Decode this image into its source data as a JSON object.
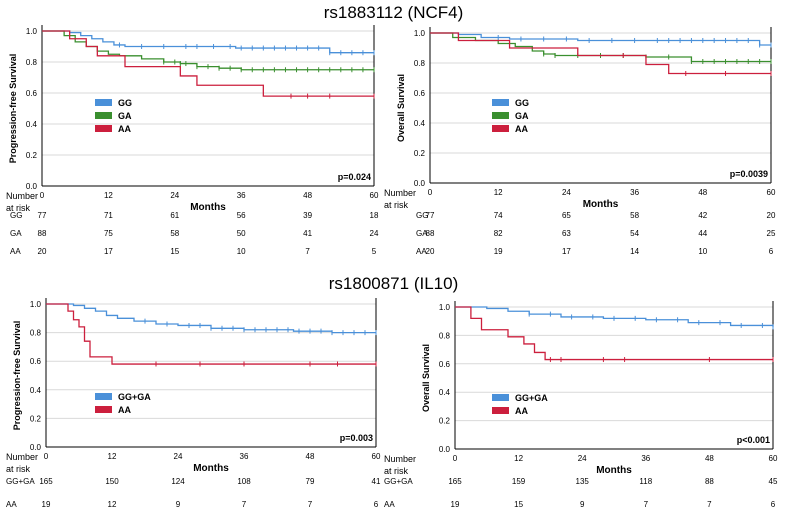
{
  "titles": {
    "top": "rs1883112 (NCF4)",
    "bottom": "rs1800871 (IL10)"
  },
  "colors": {
    "GG": "#4a90d9",
    "GA": "#3a8f2f",
    "AA": "#cc1f3d",
    "GG+GA": "#4a90d9",
    "grid": "#d9d9d9"
  },
  "chart_data": [
    {
      "type": "line",
      "title": "rs1883112 (NCF4)",
      "ylabel": "Progression-free Survival",
      "xlabel": "Months",
      "xlim": [
        0,
        60
      ],
      "ylim": [
        0,
        1.0
      ],
      "xticks": [
        "0",
        "12",
        "24",
        "36",
        "48",
        "60"
      ],
      "yticks": [
        "0.0",
        "0.2",
        "0.4",
        "0.6",
        "0.8",
        "1.0"
      ],
      "pvalue": "p=0.024",
      "legend": [
        "GG",
        "GA",
        "AA"
      ],
      "series": [
        {
          "name": "GG",
          "x": [
            0,
            5,
            7,
            9,
            11,
            13,
            15,
            20,
            35,
            38,
            52,
            60
          ],
          "y": [
            1.0,
            0.99,
            0.97,
            0.95,
            0.93,
            0.91,
            0.9,
            0.9,
            0.89,
            0.89,
            0.86,
            0.86
          ],
          "censor": [
            14,
            18,
            22,
            26,
            28,
            31,
            34,
            36,
            38,
            40,
            42,
            44,
            46,
            48,
            50,
            52,
            54,
            56,
            58,
            60
          ]
        },
        {
          "name": "GA",
          "x": [
            0,
            4,
            6,
            8,
            10,
            12,
            14,
            18,
            22,
            25,
            28,
            32,
            36,
            60
          ],
          "y": [
            1.0,
            0.97,
            0.93,
            0.9,
            0.87,
            0.85,
            0.84,
            0.82,
            0.8,
            0.79,
            0.77,
            0.76,
            0.75,
            0.75
          ],
          "censor": [
            22,
            24,
            25,
            26,
            28,
            30,
            32,
            34,
            36,
            38,
            40,
            42,
            44,
            46,
            48,
            50,
            52,
            54,
            56,
            58,
            60
          ]
        },
        {
          "name": "AA",
          "x": [
            0,
            5,
            8,
            10,
            15,
            25,
            28,
            40,
            60
          ],
          "y": [
            1.0,
            0.95,
            0.9,
            0.84,
            0.77,
            0.71,
            0.65,
            0.58,
            0.58
          ],
          "censor": [
            45,
            48,
            52,
            60
          ]
        }
      ],
      "risk_label": [
        "Number",
        "at risk"
      ],
      "risk": [
        {
          "group": "GG",
          "values": [
            "77",
            "71",
            "61",
            "56",
            "39",
            "18"
          ]
        },
        {
          "group": "GA",
          "values": [
            "88",
            "75",
            "58",
            "50",
            "41",
            "24"
          ]
        },
        {
          "group": "AA",
          "values": [
            "20",
            "17",
            "15",
            "10",
            "7",
            "5"
          ]
        }
      ]
    },
    {
      "type": "line",
      "title": "rs1883112 (NCF4)",
      "ylabel": "Overall Survival",
      "xlabel": "Months",
      "xlim": [
        0,
        60
      ],
      "ylim": [
        0,
        1.0
      ],
      "xticks": [
        "0",
        "12",
        "24",
        "36",
        "48",
        "60"
      ],
      "yticks": [
        "0.0",
        "0.2",
        "0.4",
        "0.6",
        "0.8",
        "1.0"
      ],
      "pvalue": "p=0.0039",
      "legend": [
        "GG",
        "GA",
        "AA"
      ],
      "series": [
        {
          "name": "GG",
          "x": [
            0,
            5,
            9,
            14,
            26,
            46,
            58,
            60
          ],
          "y": [
            1.0,
            0.99,
            0.97,
            0.96,
            0.95,
            0.95,
            0.92,
            0.92
          ],
          "censor": [
            12,
            16,
            20,
            24,
            28,
            32,
            36,
            40,
            42,
            44,
            46,
            48,
            50,
            52,
            54,
            56,
            58,
            60
          ]
        },
        {
          "name": "GA",
          "x": [
            0,
            4,
            8,
            12,
            15,
            18,
            20,
            22,
            38,
            46,
            60
          ],
          "y": [
            1.0,
            0.97,
            0.95,
            0.93,
            0.91,
            0.88,
            0.86,
            0.85,
            0.84,
            0.81,
            0.81
          ],
          "censor": [
            20,
            22,
            26,
            30,
            34,
            38,
            42,
            46,
            48,
            50,
            52,
            54,
            56,
            58,
            60
          ]
        },
        {
          "name": "AA",
          "x": [
            0,
            5,
            14,
            26,
            38,
            42,
            60
          ],
          "y": [
            1.0,
            0.95,
            0.9,
            0.85,
            0.79,
            0.73,
            0.73
          ],
          "censor": [
            34,
            45,
            52,
            60
          ]
        }
      ],
      "risk_label": [
        "Number",
        "at risk"
      ],
      "risk": [
        {
          "group": "GG",
          "values": [
            "77",
            "74",
            "65",
            "58",
            "42",
            "20"
          ]
        },
        {
          "group": "GA",
          "values": [
            "88",
            "82",
            "63",
            "54",
            "44",
            "25"
          ]
        },
        {
          "group": "AA",
          "values": [
            "20",
            "19",
            "17",
            "14",
            "10",
            "6"
          ]
        }
      ]
    },
    {
      "type": "line",
      "title": "rs1800871 (IL10)",
      "ylabel": "Progression-free Survival",
      "xlabel": "Months",
      "xlim": [
        0,
        60
      ],
      "ylim": [
        0,
        1.0
      ],
      "xticks": [
        "0",
        "12",
        "24",
        "36",
        "48",
        "60"
      ],
      "yticks": [
        "0.0",
        "0.2",
        "0.4",
        "0.6",
        "0.8",
        "1.0"
      ],
      "pvalue": "p=0.003",
      "legend": [
        "GG+GA",
        "AA"
      ],
      "series": [
        {
          "name": "GG+GA",
          "x": [
            0,
            5,
            7,
            9,
            11,
            13,
            16,
            20,
            24,
            30,
            36,
            45,
            52,
            60
          ],
          "y": [
            1.0,
            0.99,
            0.97,
            0.95,
            0.92,
            0.9,
            0.88,
            0.86,
            0.85,
            0.83,
            0.82,
            0.81,
            0.8,
            0.8
          ],
          "censor": [
            18,
            22,
            26,
            28,
            30,
            32,
            34,
            36,
            38,
            40,
            42,
            44,
            46,
            48,
            50,
            52,
            54,
            56,
            58,
            60
          ]
        },
        {
          "name": "AA",
          "x": [
            0,
            4,
            5,
            6,
            7,
            8,
            12,
            60
          ],
          "y": [
            1.0,
            0.95,
            0.89,
            0.84,
            0.74,
            0.63,
            0.58,
            0.58
          ],
          "censor": [
            20,
            28,
            36,
            48,
            53,
            60
          ]
        }
      ],
      "risk_label": [
        "Number",
        "at risk"
      ],
      "risk": [
        {
          "group": "GG+GA",
          "values": [
            "165",
            "150",
            "124",
            "108",
            "79",
            "41"
          ]
        },
        {
          "group": "AA",
          "values": [
            "19",
            "12",
            "9",
            "7",
            "7",
            "6"
          ]
        }
      ]
    },
    {
      "type": "line",
      "title": "rs1800871 (IL10)",
      "ylabel": "Overall Survival",
      "xlabel": "Months",
      "xlim": [
        0,
        60
      ],
      "ylim": [
        0,
        1.0
      ],
      "xticks": [
        "0",
        "12",
        "24",
        "36",
        "48",
        "60"
      ],
      "yticks": [
        "0.0",
        "0.2",
        "0.4",
        "0.6",
        "0.8",
        "1.0"
      ],
      "pvalue": "p<0.001",
      "legend": [
        "GG+GA",
        "AA"
      ],
      "series": [
        {
          "name": "GG+GA",
          "x": [
            0,
            6,
            10,
            14,
            20,
            28,
            36,
            44,
            52,
            60
          ],
          "y": [
            1.0,
            0.99,
            0.97,
            0.95,
            0.93,
            0.92,
            0.91,
            0.89,
            0.87,
            0.86
          ],
          "censor": [
            14,
            18,
            22,
            26,
            30,
            34,
            38,
            42,
            46,
            50,
            54,
            58,
            60
          ]
        },
        {
          "name": "AA",
          "x": [
            0,
            3,
            5,
            10,
            13,
            15,
            17,
            60
          ],
          "y": [
            1.0,
            0.92,
            0.84,
            0.79,
            0.74,
            0.68,
            0.63,
            0.63
          ],
          "censor": [
            18,
            20,
            28,
            32,
            48,
            60
          ]
        }
      ],
      "risk_label": [
        "Number",
        "at risk"
      ],
      "risk": [
        {
          "group": "GG+GA",
          "values": [
            "165",
            "159",
            "135",
            "118",
            "88",
            "45"
          ]
        },
        {
          "group": "AA",
          "values": [
            "19",
            "15",
            "9",
            "7",
            "7",
            "6"
          ]
        }
      ]
    }
  ]
}
